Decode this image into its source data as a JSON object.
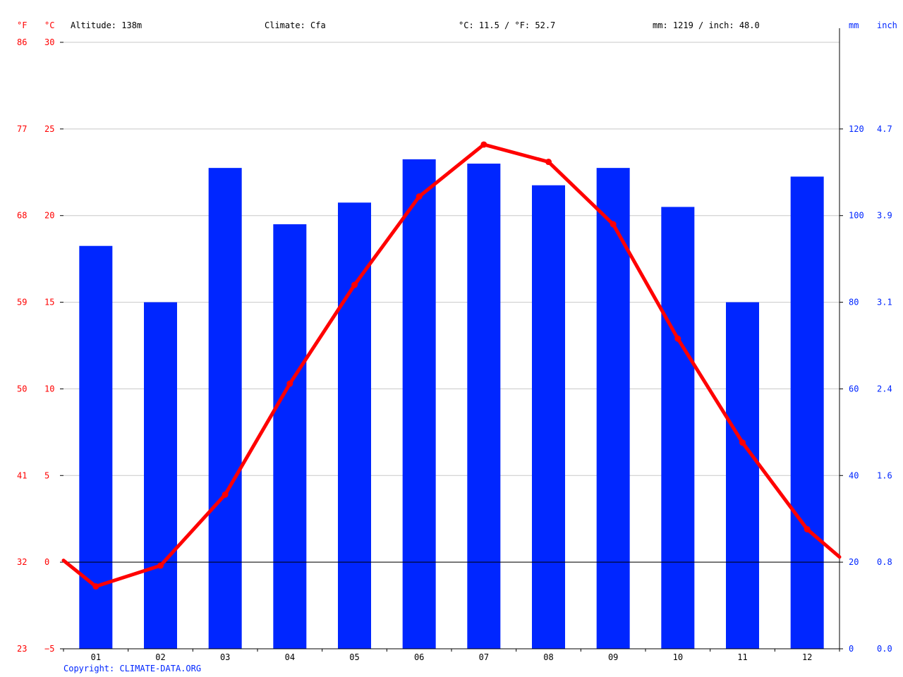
{
  "chart_data": {
    "type": "bar+line",
    "header": {
      "altitude": "Altitude: 138m",
      "climate": "Climate: Cfa",
      "temp_avg": "°C: 11.5 / °F: 52.7",
      "precip_total": "mm: 1219 / inch: 48.0"
    },
    "axis_units": {
      "f": "°F",
      "c": "°C",
      "mm": "mm",
      "inch": "inch"
    },
    "months": [
      "01",
      "02",
      "03",
      "04",
      "05",
      "06",
      "07",
      "08",
      "09",
      "10",
      "11",
      "12"
    ],
    "precipitation_mm": [
      93,
      80,
      111,
      98,
      103,
      113,
      112,
      107,
      111,
      102,
      80,
      109
    ],
    "temperature_c": [
      -1.4,
      -0.2,
      3.9,
      10.3,
      16.0,
      21.1,
      24.1,
      23.1,
      19.5,
      12.9,
      6.9,
      1.9
    ],
    "temperature_c_edges": [
      0.1,
      0.3
    ],
    "c_ticks": [
      "30",
      "25",
      "20",
      "15",
      "10",
      "5",
      "0",
      "−5"
    ],
    "f_ticks": [
      "86",
      "77",
      "68",
      "59",
      "50",
      "41",
      "32",
      "23"
    ],
    "mm_ticks": [
      "120",
      "100",
      "80",
      "60",
      "40",
      "20",
      "0"
    ],
    "inch_ticks": [
      "4.7",
      "3.9",
      "3.1",
      "2.4",
      "1.6",
      "0.8",
      "0.0"
    ],
    "c_range": [
      -5,
      30
    ],
    "mm_range": [
      0,
      140
    ],
    "bar_color": "#0026ff",
    "line_color": "#ff0000",
    "grid": true,
    "copyright": "Copyright: CLIMATE-DATA.ORG"
  }
}
